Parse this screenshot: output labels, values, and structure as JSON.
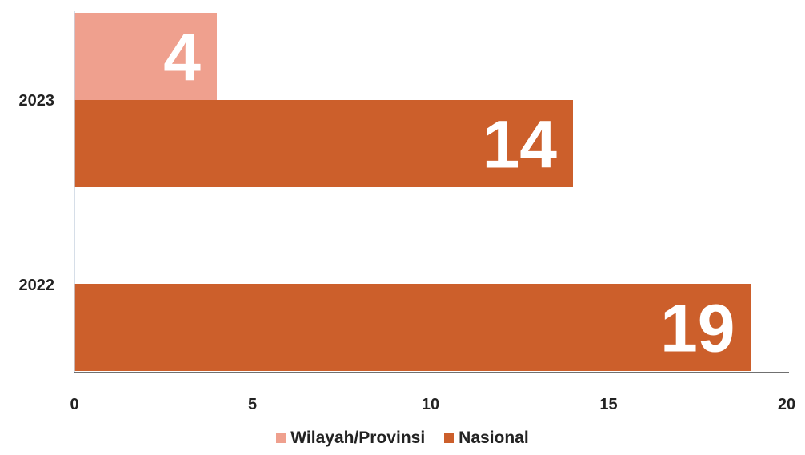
{
  "chart_data": {
    "type": "bar",
    "orientation": "horizontal",
    "categories": [
      "2023",
      "2022"
    ],
    "series": [
      {
        "name": "Wilayah/Provinsi",
        "color": "#EFA08E",
        "values": [
          4,
          null
        ]
      },
      {
        "name": "Nasional",
        "color": "#CC5F2B",
        "values": [
          14,
          19
        ]
      }
    ],
    "xlim": [
      0,
      20
    ],
    "xticks": [
      "0",
      "5",
      "10",
      "15",
      "20"
    ],
    "grid": false,
    "legend_position": "bottom-center",
    "data_labels": true
  }
}
